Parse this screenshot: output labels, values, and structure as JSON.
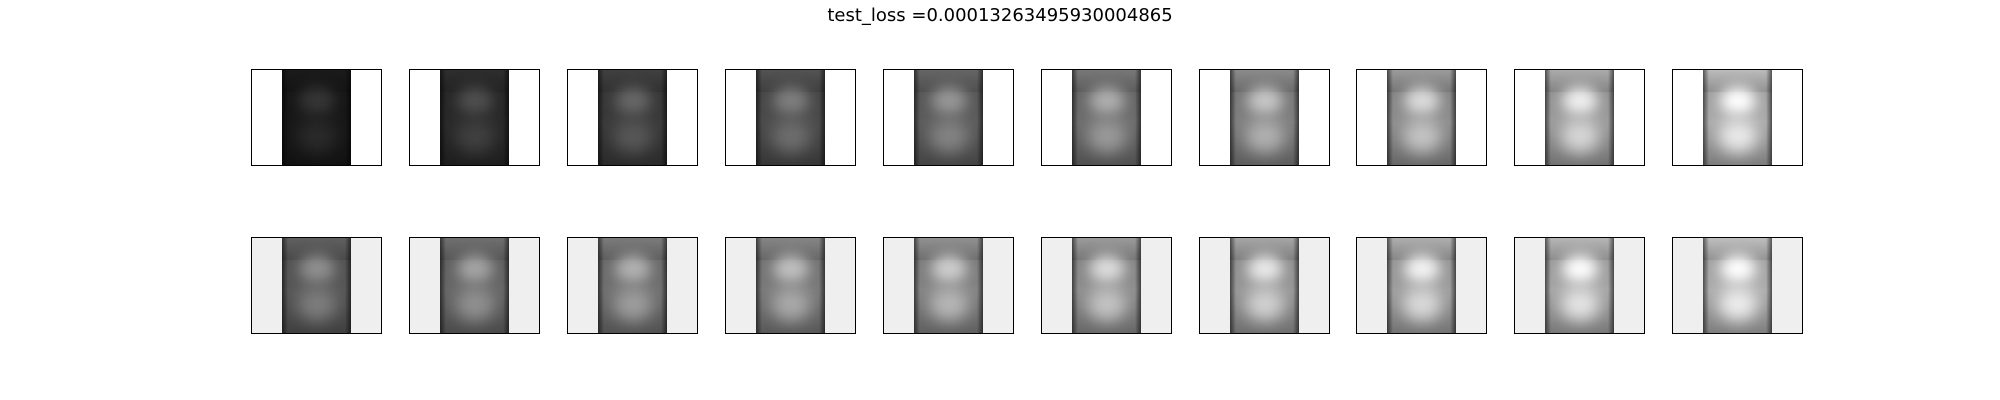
{
  "figure": {
    "title": "test_loss =0.00013263495930004865"
  },
  "rows": [
    {
      "name": "row-1",
      "background": "#ffffff",
      "panels": [
        {
          "brightness": 0.1
        },
        {
          "brightness": 0.17
        },
        {
          "brightness": 0.24
        },
        {
          "brightness": 0.31
        },
        {
          "brightness": 0.38
        },
        {
          "brightness": 0.45
        },
        {
          "brightness": 0.52
        },
        {
          "brightness": 0.58
        },
        {
          "brightness": 0.64
        },
        {
          "brightness": 0.7
        }
      ]
    },
    {
      "name": "row-2",
      "background": "#efefef",
      "panels": [
        {
          "brightness": 0.36
        },
        {
          "brightness": 0.42
        },
        {
          "brightness": 0.46
        },
        {
          "brightness": 0.5
        },
        {
          "brightness": 0.54
        },
        {
          "brightness": 0.58
        },
        {
          "brightness": 0.62
        },
        {
          "brightness": 0.65
        },
        {
          "brightness": 0.68
        },
        {
          "brightness": 0.71
        }
      ]
    }
  ]
}
